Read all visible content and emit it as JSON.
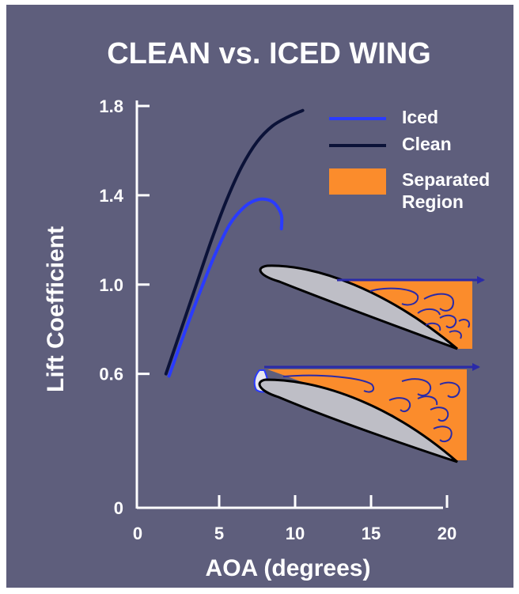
{
  "colors": {
    "background": "#5e5e7c",
    "axis": "#ffffff",
    "iced": "#2a3bff",
    "clean": "#0b1238",
    "separated": "#fb8c2c",
    "airfoil_fill": "#bebec6",
    "flow_arrow": "#2a2aa8"
  },
  "legend": {
    "items": [
      {
        "label": "Iced"
      },
      {
        "label": "Clean"
      },
      {
        "label": "Separated Region"
      }
    ]
  },
  "diagram": {
    "top_airfoil": "clean airfoil with separated region",
    "bottom_airfoil": "iced airfoil with separated region"
  },
  "chart_data": {
    "type": "line",
    "title": "CLEAN vs. ICED WING",
    "xlabel": "AOA (degrees)",
    "ylabel": "Lift Coefficient",
    "xlim": [
      0,
      20
    ],
    "ylim": [
      0,
      1.8
    ],
    "x_ticks": [
      0,
      5,
      10,
      15,
      20
    ],
    "y_ticks": [
      0,
      0.6,
      1.0,
      1.4,
      1.8
    ],
    "x_tick_labels": [
      "0",
      "5",
      "10",
      "15",
      "20"
    ],
    "y_tick_labels": [
      "0",
      "0.6",
      "1.0",
      "1.4",
      "1.8"
    ],
    "grid": false,
    "legend_position": "top-right",
    "series": [
      {
        "name": "Clean",
        "color": "#0b1238",
        "x": [
          1.5,
          2.5,
          3.5,
          4.5,
          5.5,
          6.5,
          7.5,
          8.5,
          9.5,
          10.5
        ],
        "y": [
          0.6,
          0.8,
          1.0,
          1.2,
          1.38,
          1.53,
          1.64,
          1.71,
          1.75,
          1.78
        ]
      },
      {
        "name": "Iced",
        "color": "#2a3bff",
        "x": [
          1.7,
          2.7,
          3.7,
          4.7,
          5.7,
          6.7,
          7.5,
          8.2,
          8.7,
          9.1,
          9.1
        ],
        "y": [
          0.59,
          0.78,
          0.96,
          1.13,
          1.27,
          1.35,
          1.38,
          1.38,
          1.36,
          1.31,
          1.25
        ]
      }
    ]
  }
}
